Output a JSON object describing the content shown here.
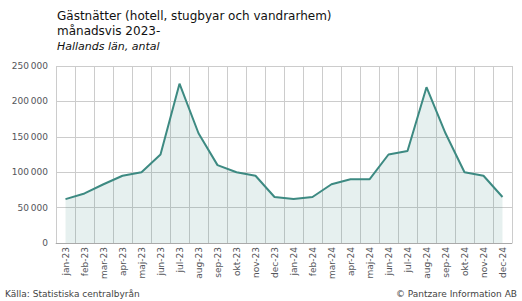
{
  "chart_data": {
    "type": "area",
    "title": "Gästnätter (hotell, stugbyar och vandrarhem)\nmånadsvis 2023-",
    "subtitle": "Hallands län, antal",
    "annotations": [
      "Källa: Statistiska centralbyrån",
      "© Pantzare Information AB"
    ],
    "categories": [
      "jan-23",
      "feb-23",
      "mar-23",
      "apr-23",
      "maj-23",
      "jun-23",
      "jul-23",
      "aug-23",
      "sep-23",
      "okt-23",
      "nov-23",
      "dec-23",
      "jan-24",
      "feb-24",
      "mar-24",
      "apr-24",
      "maj-24",
      "jun-24",
      "jul-24",
      "aug-24",
      "sep-24",
      "okt-24",
      "nov-24",
      "dec-24"
    ],
    "values": [
      62000,
      70000,
      83000,
      95000,
      100000,
      125000,
      225000,
      155000,
      110000,
      100000,
      95000,
      65000,
      62000,
      65000,
      83000,
      90000,
      90000,
      125000,
      130000,
      220000,
      155000,
      100000,
      95000,
      65000
    ],
    "color": "#3d8a82",
    "ylim": [
      0,
      250000
    ],
    "yticks": [
      0,
      {
        "value": 50000,
        "label": "50 000"
      },
      {
        "value": 100000,
        "label": "100 000"
      },
      {
        "value": 150000,
        "label": "150 000"
      },
      {
        "value": 200000,
        "label": "200 000"
      },
      {
        "value": 250000,
        "label": "250 000"
      }
    ],
    "grid": true
  }
}
